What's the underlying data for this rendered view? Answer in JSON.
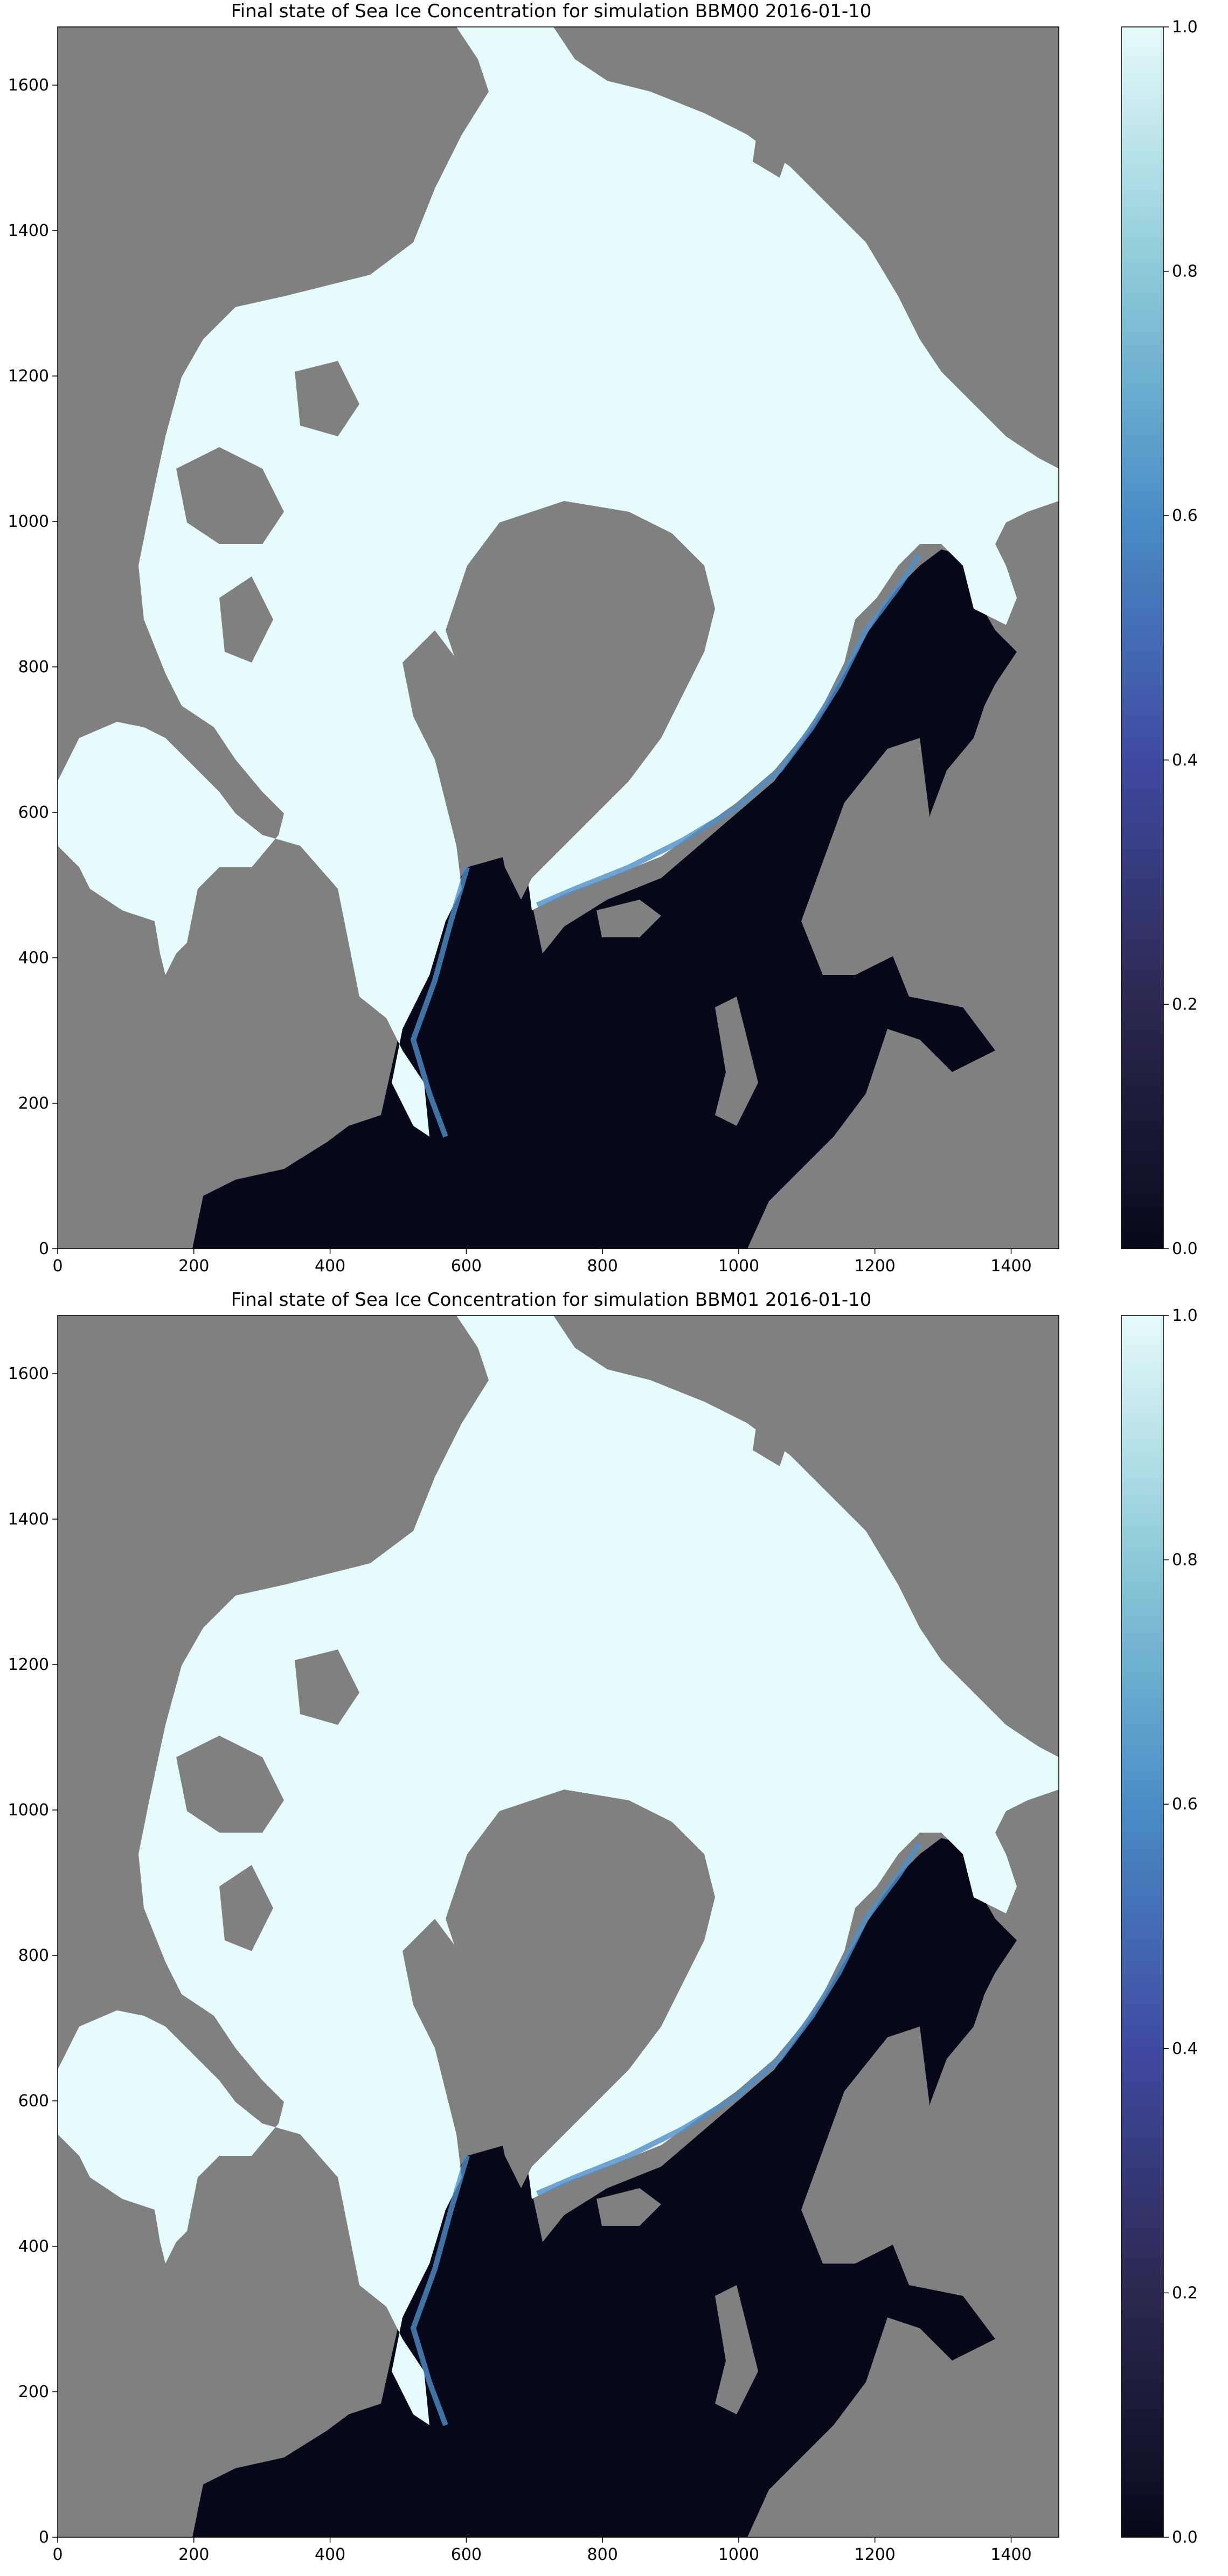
{
  "chart_data": [
    {
      "type": "heatmap",
      "title": "Final state of Sea Ice Concentration for simulation BBM00 2016-01-10",
      "xlim": [
        0,
        1470
      ],
      "ylim": [
        0,
        1680
      ],
      "x_ticks": [
        0,
        200,
        400,
        600,
        800,
        1000,
        1200,
        1400
      ],
      "y_ticks": [
        0,
        200,
        400,
        600,
        800,
        1000,
        1200,
        1400,
        1600
      ],
      "colorbar": {
        "range": [
          0.0,
          1.0
        ],
        "ticks": [
          "0.0",
          "0.2",
          "0.4",
          "0.6",
          "0.8",
          "1.0"
        ]
      },
      "colors": {
        "land": "#808080",
        "open_water": "#07091a",
        "full_ice": "#e6fbfb",
        "mid_ice": "#4f8fc7",
        "low_ice": "#3b3f96"
      }
    },
    {
      "type": "heatmap",
      "title": "Final state of Sea Ice Concentration for simulation BBM01 2016-01-10",
      "xlim": [
        0,
        1470
      ],
      "ylim": [
        0,
        1680
      ],
      "x_ticks": [
        0,
        200,
        400,
        600,
        800,
        1000,
        1200,
        1400
      ],
      "y_ticks": [
        0,
        200,
        400,
        600,
        800,
        1000,
        1200,
        1400,
        1600
      ],
      "colorbar": {
        "range": [
          0.0,
          1.0
        ],
        "ticks": [
          "0.0",
          "0.2",
          "0.4",
          "0.6",
          "0.8",
          "1.0"
        ]
      },
      "colors": {
        "land": "#808080",
        "open_water": "#07091a",
        "full_ice": "#e6fbfb",
        "mid_ice": "#4f8fc7",
        "low_ice": "#3b3f96"
      }
    }
  ]
}
